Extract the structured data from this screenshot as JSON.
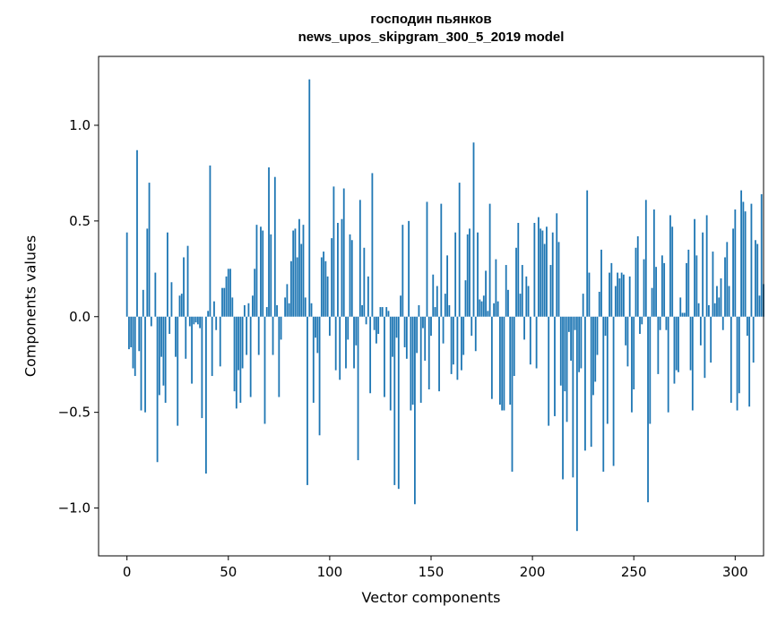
{
  "chart_data": {
    "type": "bar",
    "title_line1": "господин пьянков",
    "title_line2": "news_upos_skipgram_300_5_2019 model",
    "xlabel": "Vector components",
    "ylabel": "Components values",
    "xlim": [
      -14,
      314
    ],
    "ylim": [
      -1.25,
      1.36
    ],
    "xticks": [
      0,
      50,
      100,
      150,
      200,
      250,
      300
    ],
    "xtick_labels": [
      "0",
      "50",
      "100",
      "150",
      "200",
      "250",
      "300"
    ],
    "yticks": [
      -1.0,
      -0.5,
      0.0,
      0.5,
      1.0
    ],
    "ytick_labels": [
      "−1.0",
      "−0.5",
      "0.0",
      "0.5",
      "1.0"
    ],
    "bar_color": "#1f77b4",
    "grid": false,
    "values": [
      0.44,
      -0.17,
      -0.16,
      -0.27,
      -0.31,
      0.87,
      -0.18,
      -0.49,
      0.14,
      -0.5,
      0.46,
      0.7,
      -0.05,
      0.0,
      0.23,
      -0.76,
      -0.41,
      -0.21,
      -0.36,
      -0.45,
      0.44,
      -0.09,
      0.18,
      0.0,
      -0.21,
      -0.57,
      0.11,
      0.12,
      0.31,
      -0.22,
      0.37,
      -0.05,
      -0.35,
      -0.04,
      -0.03,
      -0.04,
      -0.06,
      -0.53,
      0.0,
      -0.82,
      0.03,
      0.79,
      -0.31,
      0.08,
      -0.07,
      0.0,
      -0.26,
      0.15,
      0.15,
      0.21,
      0.25,
      0.25,
      0.1,
      -0.39,
      -0.48,
      -0.28,
      -0.45,
      -0.27,
      0.06,
      -0.2,
      0.07,
      -0.42,
      0.11,
      0.25,
      0.48,
      -0.2,
      0.47,
      0.45,
      -0.56,
      0.05,
      0.78,
      0.43,
      -0.2,
      0.73,
      0.06,
      -0.42,
      -0.12,
      0.0,
      0.1,
      0.17,
      0.07,
      0.29,
      0.45,
      0.46,
      0.31,
      0.51,
      0.38,
      0.48,
      0.1,
      -0.88,
      1.24,
      0.07,
      -0.45,
      -0.11,
      -0.19,
      -0.62,
      0.31,
      0.34,
      0.29,
      0.21,
      -0.1,
      0.41,
      0.68,
      -0.28,
      0.49,
      -0.33,
      0.51,
      0.67,
      -0.27,
      -0.12,
      0.43,
      0.4,
      -0.27,
      -0.15,
      -0.75,
      0.61,
      0.06,
      0.36,
      -0.04,
      0.21,
      -0.4,
      0.75,
      -0.07,
      -0.14,
      -0.09,
      0.05,
      0.05,
      -0.42,
      0.05,
      0.03,
      -0.49,
      -0.21,
      -0.88,
      -0.11,
      -0.9,
      0.11,
      0.48,
      -0.16,
      -0.22,
      0.5,
      -0.49,
      -0.46,
      -0.98,
      -0.19,
      0.06,
      -0.45,
      -0.06,
      -0.23,
      0.6,
      -0.38,
      -0.1,
      0.22,
      0.05,
      0.16,
      -0.39,
      0.59,
      -0.14,
      0.12,
      0.32,
      0.06,
      -0.3,
      -0.25,
      0.44,
      -0.33,
      0.7,
      -0.28,
      -0.2,
      0.19,
      0.43,
      0.46,
      -0.1,
      0.91,
      -0.18,
      0.44,
      0.09,
      0.08,
      0.11,
      0.24,
      0.03,
      0.59,
      -0.43,
      0.07,
      0.3,
      0.08,
      -0.46,
      -0.49,
      -0.49,
      0.27,
      0.14,
      -0.46,
      -0.81,
      -0.31,
      0.36,
      0.49,
      0.12,
      0.27,
      -0.12,
      0.21,
      0.16,
      -0.25,
      0.0,
      0.49,
      -0.27,
      0.52,
      0.46,
      0.45,
      0.38,
      0.47,
      -0.57,
      0.27,
      0.44,
      -0.52,
      0.54,
      0.39,
      -0.36,
      -0.85,
      -0.39,
      -0.55,
      -0.08,
      -0.23,
      -0.84,
      -0.07,
      -1.12,
      -0.29,
      -0.27,
      0.12,
      -0.7,
      0.66,
      0.23,
      -0.68,
      -0.41,
      -0.34,
      -0.2,
      0.13,
      0.35,
      -0.81,
      -0.1,
      -0.56,
      0.23,
      0.28,
      -0.78,
      0.16,
      0.23,
      0.2,
      0.23,
      0.22,
      -0.15,
      -0.26,
      0.21,
      -0.5,
      -0.38,
      0.36,
      0.42,
      -0.09,
      -0.04,
      0.3,
      0.61,
      -0.97,
      -0.56,
      0.15,
      0.56,
      0.26,
      -0.3,
      -0.07,
      0.32,
      0.28,
      -0.07,
      -0.5,
      0.53,
      0.47,
      -0.35,
      -0.28,
      -0.29,
      0.1,
      0.02,
      0.02,
      0.28,
      0.35,
      -0.28,
      -0.49,
      0.51,
      0.32,
      0.07,
      -0.15,
      0.44,
      -0.32,
      0.53,
      0.06,
      -0.24,
      0.34,
      0.07,
      0.16,
      0.1,
      0.2,
      -0.07,
      0.31,
      0.39,
      0.16,
      -0.45,
      0.46,
      0.56,
      -0.49,
      -0.4,
      0.66,
      0.6,
      0.55,
      -0.1,
      -0.47,
      0.59,
      -0.24,
      0.4,
      0.38,
      0.11,
      0.64,
      0.17
    ]
  }
}
